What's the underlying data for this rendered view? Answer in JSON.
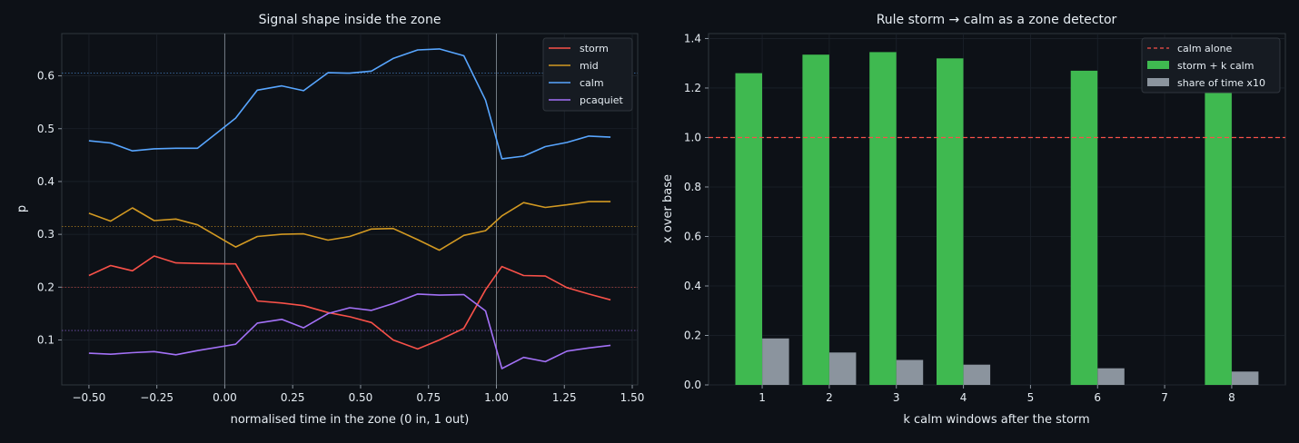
{
  "chart_data": [
    {
      "type": "line",
      "title": "Signal shape inside the zone",
      "xlabel": "normalised time in the zone (0 in, 1 out)",
      "ylabel": "p",
      "xlim": [
        -0.6,
        1.52
      ],
      "ylim": [
        0.015,
        0.68
      ],
      "xticks": [
        -0.5,
        -0.25,
        0.0,
        0.25,
        0.5,
        0.75,
        1.0,
        1.25,
        1.5
      ],
      "xtick_labels": [
        "−0.50",
        "−0.25",
        "0.00",
        "0.25",
        "0.50",
        "0.75",
        "1.00",
        "1.25",
        "1.50"
      ],
      "yticks": [
        0.1,
        0.2,
        0.3,
        0.4,
        0.5,
        0.6
      ],
      "ytick_labels": [
        "0.1",
        "0.2",
        "0.3",
        "0.4",
        "0.5",
        "0.6"
      ],
      "vlines": [
        0.0,
        1.0
      ],
      "grid": true,
      "legend_position": "top-right",
      "x": [
        -0.5,
        -0.42,
        -0.34,
        -0.26,
        -0.18,
        -0.1,
        0.04,
        0.12,
        0.21,
        0.29,
        0.38,
        0.46,
        0.54,
        0.62,
        0.71,
        0.79,
        0.88,
        0.96,
        1.02,
        1.1,
        1.18,
        1.26,
        1.34,
        1.42
      ],
      "series": [
        {
          "name": "storm",
          "color": "#f85149",
          "mean": 0.2,
          "values": [
            0.222,
            0.241,
            0.231,
            0.259,
            0.246,
            0.245,
            0.244,
            0.174,
            0.17,
            0.165,
            0.152,
            0.144,
            0.133,
            0.1,
            0.083,
            0.1,
            0.122,
            0.195,
            0.239,
            0.222,
            0.221,
            0.199,
            0.187,
            0.176
          ]
        },
        {
          "name": "mid",
          "color": "#d29922",
          "mean": 0.315,
          "values": [
            0.34,
            0.325,
            0.35,
            0.326,
            0.329,
            0.318,
            0.276,
            0.296,
            0.3,
            0.301,
            0.289,
            0.296,
            0.31,
            0.311,
            0.29,
            0.27,
            0.298,
            0.307,
            0.335,
            0.36,
            0.351,
            0.356,
            0.362,
            0.362
          ]
        },
        {
          "name": "calm",
          "color": "#58a6ff",
          "mean": 0.605,
          "values": [
            0.477,
            0.473,
            0.458,
            0.462,
            0.463,
            0.463,
            0.52,
            0.573,
            0.581,
            0.572,
            0.606,
            0.605,
            0.609,
            0.633,
            0.649,
            0.651,
            0.638,
            0.554,
            0.443,
            0.448,
            0.466,
            0.474,
            0.486,
            0.484
          ]
        },
        {
          "name": "pcaquiet",
          "color": "#a371f7",
          "mean": 0.118,
          "values": [
            0.075,
            0.073,
            0.076,
            0.078,
            0.072,
            0.08,
            0.092,
            0.132,
            0.139,
            0.123,
            0.15,
            0.161,
            0.156,
            0.169,
            0.187,
            0.185,
            0.186,
            0.155,
            0.046,
            0.067,
            0.059,
            0.079,
            0.085,
            0.09
          ]
        }
      ]
    },
    {
      "type": "bar",
      "title": "Rule storm → calm as a zone detector",
      "xlabel": "k calm windows after the storm",
      "ylabel": "x over base",
      "xlim": [
        0.2,
        8.8
      ],
      "ylim": [
        0,
        1.42
      ],
      "categories": [
        1,
        2,
        3,
        4,
        5,
        6,
        7,
        8
      ],
      "yticks": [
        0.0,
        0.2,
        0.4,
        0.6,
        0.8,
        1.0,
        1.2,
        1.4
      ],
      "ytick_labels": [
        "0.0",
        "0.2",
        "0.4",
        "0.6",
        "0.8",
        "1.0",
        "1.2",
        "1.4"
      ],
      "grid": true,
      "legend_position": "top-right",
      "baseline": {
        "name": "calm alone",
        "value": 1.0,
        "color": "#f85149"
      },
      "series": [
        {
          "name": "storm + k calm",
          "color": "#3fb950",
          "values": [
            1.26,
            1.335,
            1.345,
            1.32,
            null,
            1.27,
            null,
            1.19
          ]
        },
        {
          "name": "share of time x10",
          "color": "#8b949e",
          "values": [
            0.188,
            0.131,
            0.101,
            0.082,
            null,
            0.067,
            null,
            0.054
          ]
        }
      ]
    }
  ]
}
